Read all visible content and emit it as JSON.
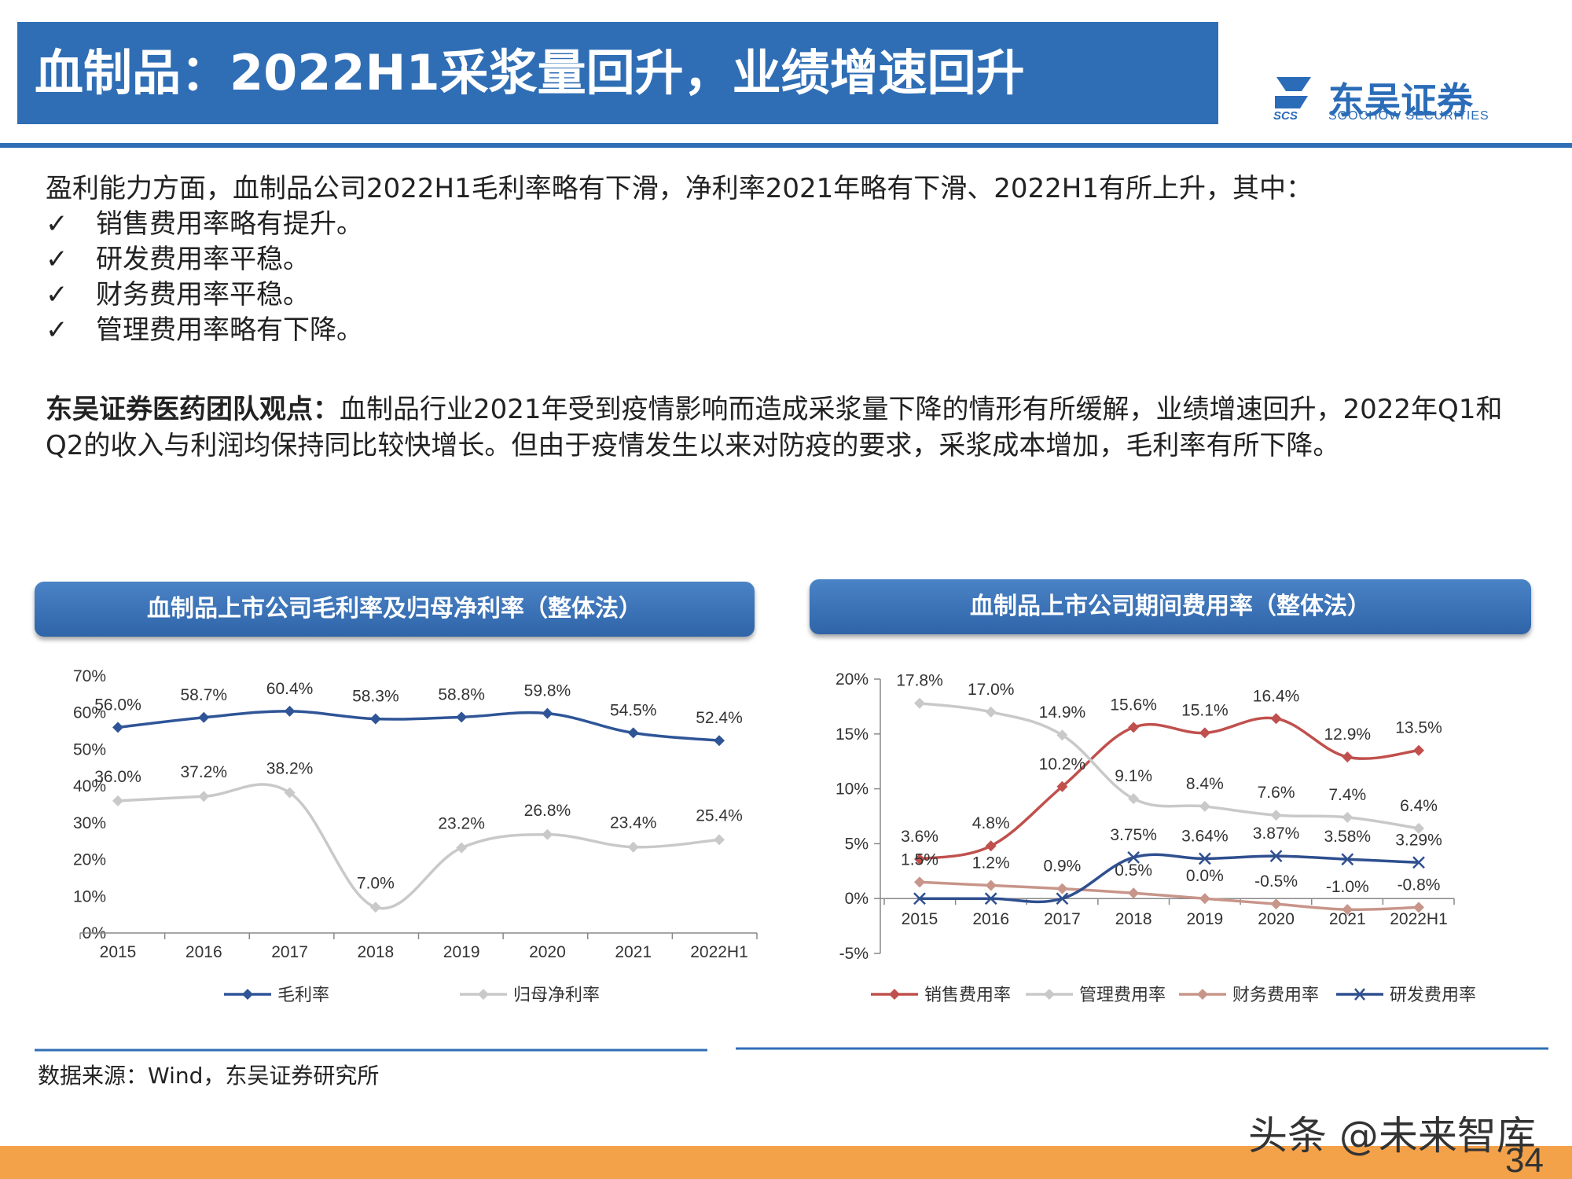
{
  "header": {
    "title": "血制品：2022H1采浆量回升，业绩增速回升",
    "logo_text": "东吴证券",
    "logo_sub": "SOOCHOW SECURITIES",
    "logo_scs": "SCS"
  },
  "intro": {
    "line": "盈利能力方面，血制品公司2022H1毛利率略有下滑，净利率2021年略有下滑、2022H1有所上升，其中：",
    "bullets": [
      {
        "tick": "✓",
        "text": "销售费用率略有提升。"
      },
      {
        "tick": "✓",
        "text": "研发费用率平稳。"
      },
      {
        "tick": "✓",
        "text": "财务费用率平稳。"
      },
      {
        "tick": "✓",
        "text": "管理费用率略有下降。"
      }
    ]
  },
  "opinion": {
    "label": "东吴证券医药团队观点：",
    "text": "血制品行业2021年受到疫情影响而造成采浆量下降的情形有所缓解，业绩增速回升，2022年Q1和Q2的收入与利润均保持同比较快增长。但由于疫情发生以来对防疫的要求，采浆成本增加，毛利率有所下降。"
  },
  "charts": {
    "left_title": "血制品上市公司毛利率及归母净利率（整体法）",
    "right_title": "血制品上市公司期间费用率（整体法）"
  },
  "chart_data": [
    {
      "type": "line",
      "title": "血制品上市公司毛利率及归母净利率（整体法）",
      "categories": [
        "2015",
        "2016",
        "2017",
        "2018",
        "2019",
        "2020",
        "2021",
        "2022H1"
      ],
      "ylim": [
        0,
        70
      ],
      "yticks": [
        "0%",
        "10%",
        "20%",
        "30%",
        "40%",
        "50%",
        "60%",
        "70%"
      ],
      "legend_position": "bottom",
      "series": [
        {
          "name": "毛利率",
          "color": "#2f5597",
          "values": [
            56.0,
            58.7,
            60.4,
            58.3,
            58.8,
            59.8,
            54.5,
            52.4
          ],
          "labels": [
            "56.0%",
            "58.7%",
            "60.4%",
            "58.3%",
            "58.8%",
            "59.8%",
            "54.5%",
            "52.4%"
          ]
        },
        {
          "name": "归母净利率",
          "color": "#c9c9c9",
          "values": [
            36.0,
            37.2,
            38.2,
            7.0,
            23.2,
            26.8,
            23.4,
            25.4
          ],
          "labels": [
            "36.0%",
            "37.2%",
            "38.2%",
            "7.0%",
            "23.2%",
            "26.8%",
            "23.4%",
            "25.4%"
          ]
        }
      ]
    },
    {
      "type": "line",
      "title": "血制品上市公司期间费用率（整体法）",
      "categories": [
        "2015",
        "2016",
        "2017",
        "2018",
        "2019",
        "2020",
        "2021",
        "2022H1"
      ],
      "ylim": [
        -5,
        20
      ],
      "yticks": [
        "-5%",
        "0%",
        "5%",
        "10%",
        "15%",
        "20%"
      ],
      "legend_position": "bottom",
      "series": [
        {
          "name": "销售费用率",
          "color": "#c0504d",
          "values": [
            3.6,
            4.8,
            10.2,
            15.6,
            15.1,
            16.4,
            12.9,
            13.5
          ],
          "labels": [
            "3.6%",
            "4.8%",
            "10.2%",
            "15.6%",
            "15.1%",
            "16.4%",
            "12.9%",
            "13.5%"
          ]
        },
        {
          "name": "管理费用率",
          "color": "#c9c9c9",
          "values": [
            17.8,
            17.0,
            14.9,
            9.1,
            8.4,
            7.6,
            7.4,
            6.4
          ],
          "labels": [
            "17.8%",
            "17.0%",
            "14.9%",
            "9.1%",
            "8.4%",
            "7.6%",
            "7.4%",
            "6.4%"
          ]
        },
        {
          "name": "财务费用率",
          "color": "#c8958a",
          "values": [
            1.5,
            1.2,
            0.9,
            0.5,
            0.0,
            -0.5,
            -1.0,
            -0.8
          ],
          "labels": [
            "1.5%",
            "1.2%",
            "0.9%",
            "0.5%",
            "0.0%",
            "-0.5%",
            "-1.0%",
            "-0.8%"
          ]
        },
        {
          "name": "研发费用率",
          "color": "#2f4f8f",
          "values": [
            0,
            0,
            0,
            3.75,
            3.64,
            3.87,
            3.58,
            3.29
          ],
          "labels": [
            "",
            "",
            "",
            "3.75%",
            "3.64%",
            "3.87%",
            "3.58%",
            "3.29%"
          ]
        }
      ]
    }
  ],
  "source": "数据来源：Wind，东吴证券研究所",
  "watermark": "头条 @未来智库",
  "page_number": "34"
}
